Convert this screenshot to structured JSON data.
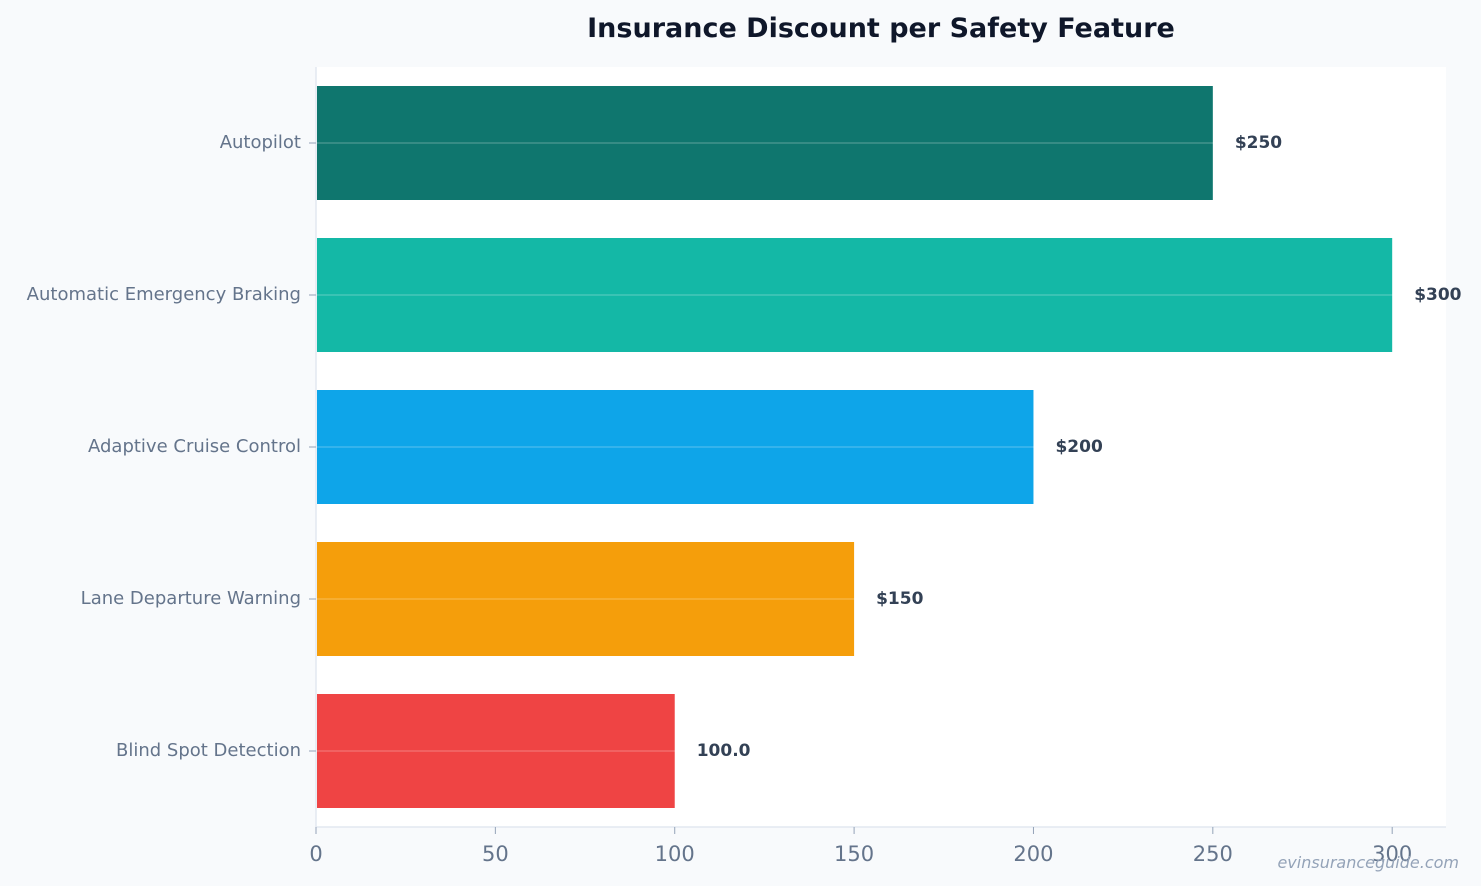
{
  "chart_data": {
    "type": "bar",
    "orientation": "horizontal",
    "title": "Insurance Discount per Safety Feature",
    "xlabel": "",
    "ylabel": "",
    "categories": [
      "Autopilot",
      "Automatic Emergency Braking",
      "Adaptive Cruise Control",
      "Lane Departure Warning",
      "Blind Spot Detection"
    ],
    "values": [
      250,
      300,
      200,
      150,
      100
    ],
    "value_labels": [
      "$250",
      "$300",
      "$200",
      "$150",
      "100.0"
    ],
    "colors": [
      "#0f766e",
      "#14b8a6",
      "#0ea5e9",
      "#f59e0b",
      "#ef4444"
    ],
    "xlim": [
      0,
      315
    ],
    "xticks": [
      0,
      50,
      100,
      150,
      200,
      250,
      300
    ],
    "grid": false,
    "legend": "none"
  },
  "watermark": "evinsuranceguide.com"
}
